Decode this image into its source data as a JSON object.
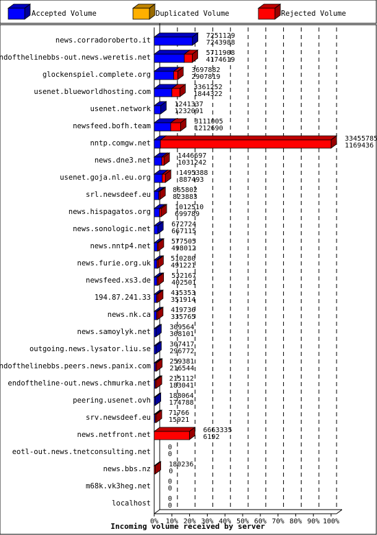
{
  "chart_data": {
    "type": "bar",
    "orientation": "horizontal",
    "xlabel": "Incoming volume received by server",
    "xticks": [
      "0%",
      "10%",
      "20%",
      "30%",
      "40%",
      "50%",
      "60%",
      "70%",
      "80%",
      "90%",
      "100%"
    ],
    "xlim": [
      0,
      100
    ],
    "legend_position": "top",
    "colors": {
      "accepted": "#0000ff",
      "duplicated": "#ffb000",
      "rejected": "#ff0000"
    },
    "series": [
      {
        "name": "Accepted Volume",
        "key": "accepted"
      },
      {
        "name": "Duplicated Volume",
        "key": "duplicated"
      },
      {
        "name": "Rejected Volume",
        "key": "rejected"
      }
    ],
    "categories": [
      "news.corradoroberto.it",
      "endofthelinebbs-out.news.weretis.net",
      "glockenspiel.complete.org",
      "usenet.blueworldhosting.com",
      "usenet.network",
      "newsfeed.bofh.team",
      "nntp.comgw.net",
      "news.dne3.net",
      "usenet.goja.nl.eu.org",
      "srl.newsdeef.eu",
      "news.hispagatos.org",
      "news.sonologic.net",
      "news.nntp4.net",
      "news.furie.org.uk",
      "newsfeed.xs3.de",
      "194.87.241.33",
      "news.nk.ca",
      "news.samoylyk.net",
      "outgoing.news.lysator.liu.se",
      "endofthelinebbs.peers.news.panix.com",
      "endoftheline-out.news.chmurka.net",
      "peering.usenet.ovh",
      "srv.newsdeef.eu",
      "news.netfront.net",
      "eotl-out.news.tnetconsulting.net",
      "news.bbs.nz",
      "m68k.vk3heg.net",
      "localhost"
    ],
    "labels_top": [
      "7251129",
      "5711908",
      "3697882",
      "3361252",
      "1241337",
      "3111005",
      "33455785",
      "1446697",
      "1495388",
      "865802",
      "1012510",
      "672724",
      "577505",
      "510280",
      "532167",
      "435353",
      "419736",
      "309564",
      "307417",
      "259381",
      "215112",
      "188064",
      "71766",
      "6663335",
      "0",
      "180236",
      "0",
      "0"
    ],
    "labels_bottom": [
      "7243988",
      "4174619",
      "2907819",
      "1844322",
      "1232091",
      "1212690",
      "1169436",
      "1031242",
      "887493",
      "823883",
      "699789",
      "667115",
      "498012",
      "491221",
      "402501",
      "351914",
      "335765",
      "308101",
      "296772",
      "216544",
      "183041",
      "174788",
      "15921",
      "6192",
      "0",
      "0",
      "0",
      "0"
    ],
    "accepted_pct": [
      21.6,
      17.0,
      11.0,
      10.0,
      3.7,
      9.3,
      3.5,
      4.3,
      4.5,
      2.6,
      3.0,
      2.0,
      1.7,
      1.5,
      1.6,
      1.3,
      1.3,
      0.9,
      0.9,
      0.8,
      0.6,
      0.6,
      0.2,
      0.0,
      0,
      0,
      0,
      0
    ],
    "duplicated_pct": [
      0,
      0,
      0,
      0,
      0,
      0,
      0,
      0,
      0,
      0,
      0,
      0,
      0,
      0,
      0,
      0,
      0,
      0,
      0,
      0,
      0,
      0,
      0,
      0,
      0,
      0,
      0,
      0
    ],
    "rejected_pct": [
      0.0,
      4.5,
      2.3,
      4.5,
      0.0,
      5.6,
      96.5,
      1.2,
      1.8,
      0.1,
      0.9,
      0.0,
      0.2,
      0.1,
      0.4,
      0.3,
      0.3,
      0.0,
      0.0,
      0.1,
      0.1,
      0.0,
      0.2,
      19.9,
      0,
      0.5,
      0,
      0
    ]
  }
}
